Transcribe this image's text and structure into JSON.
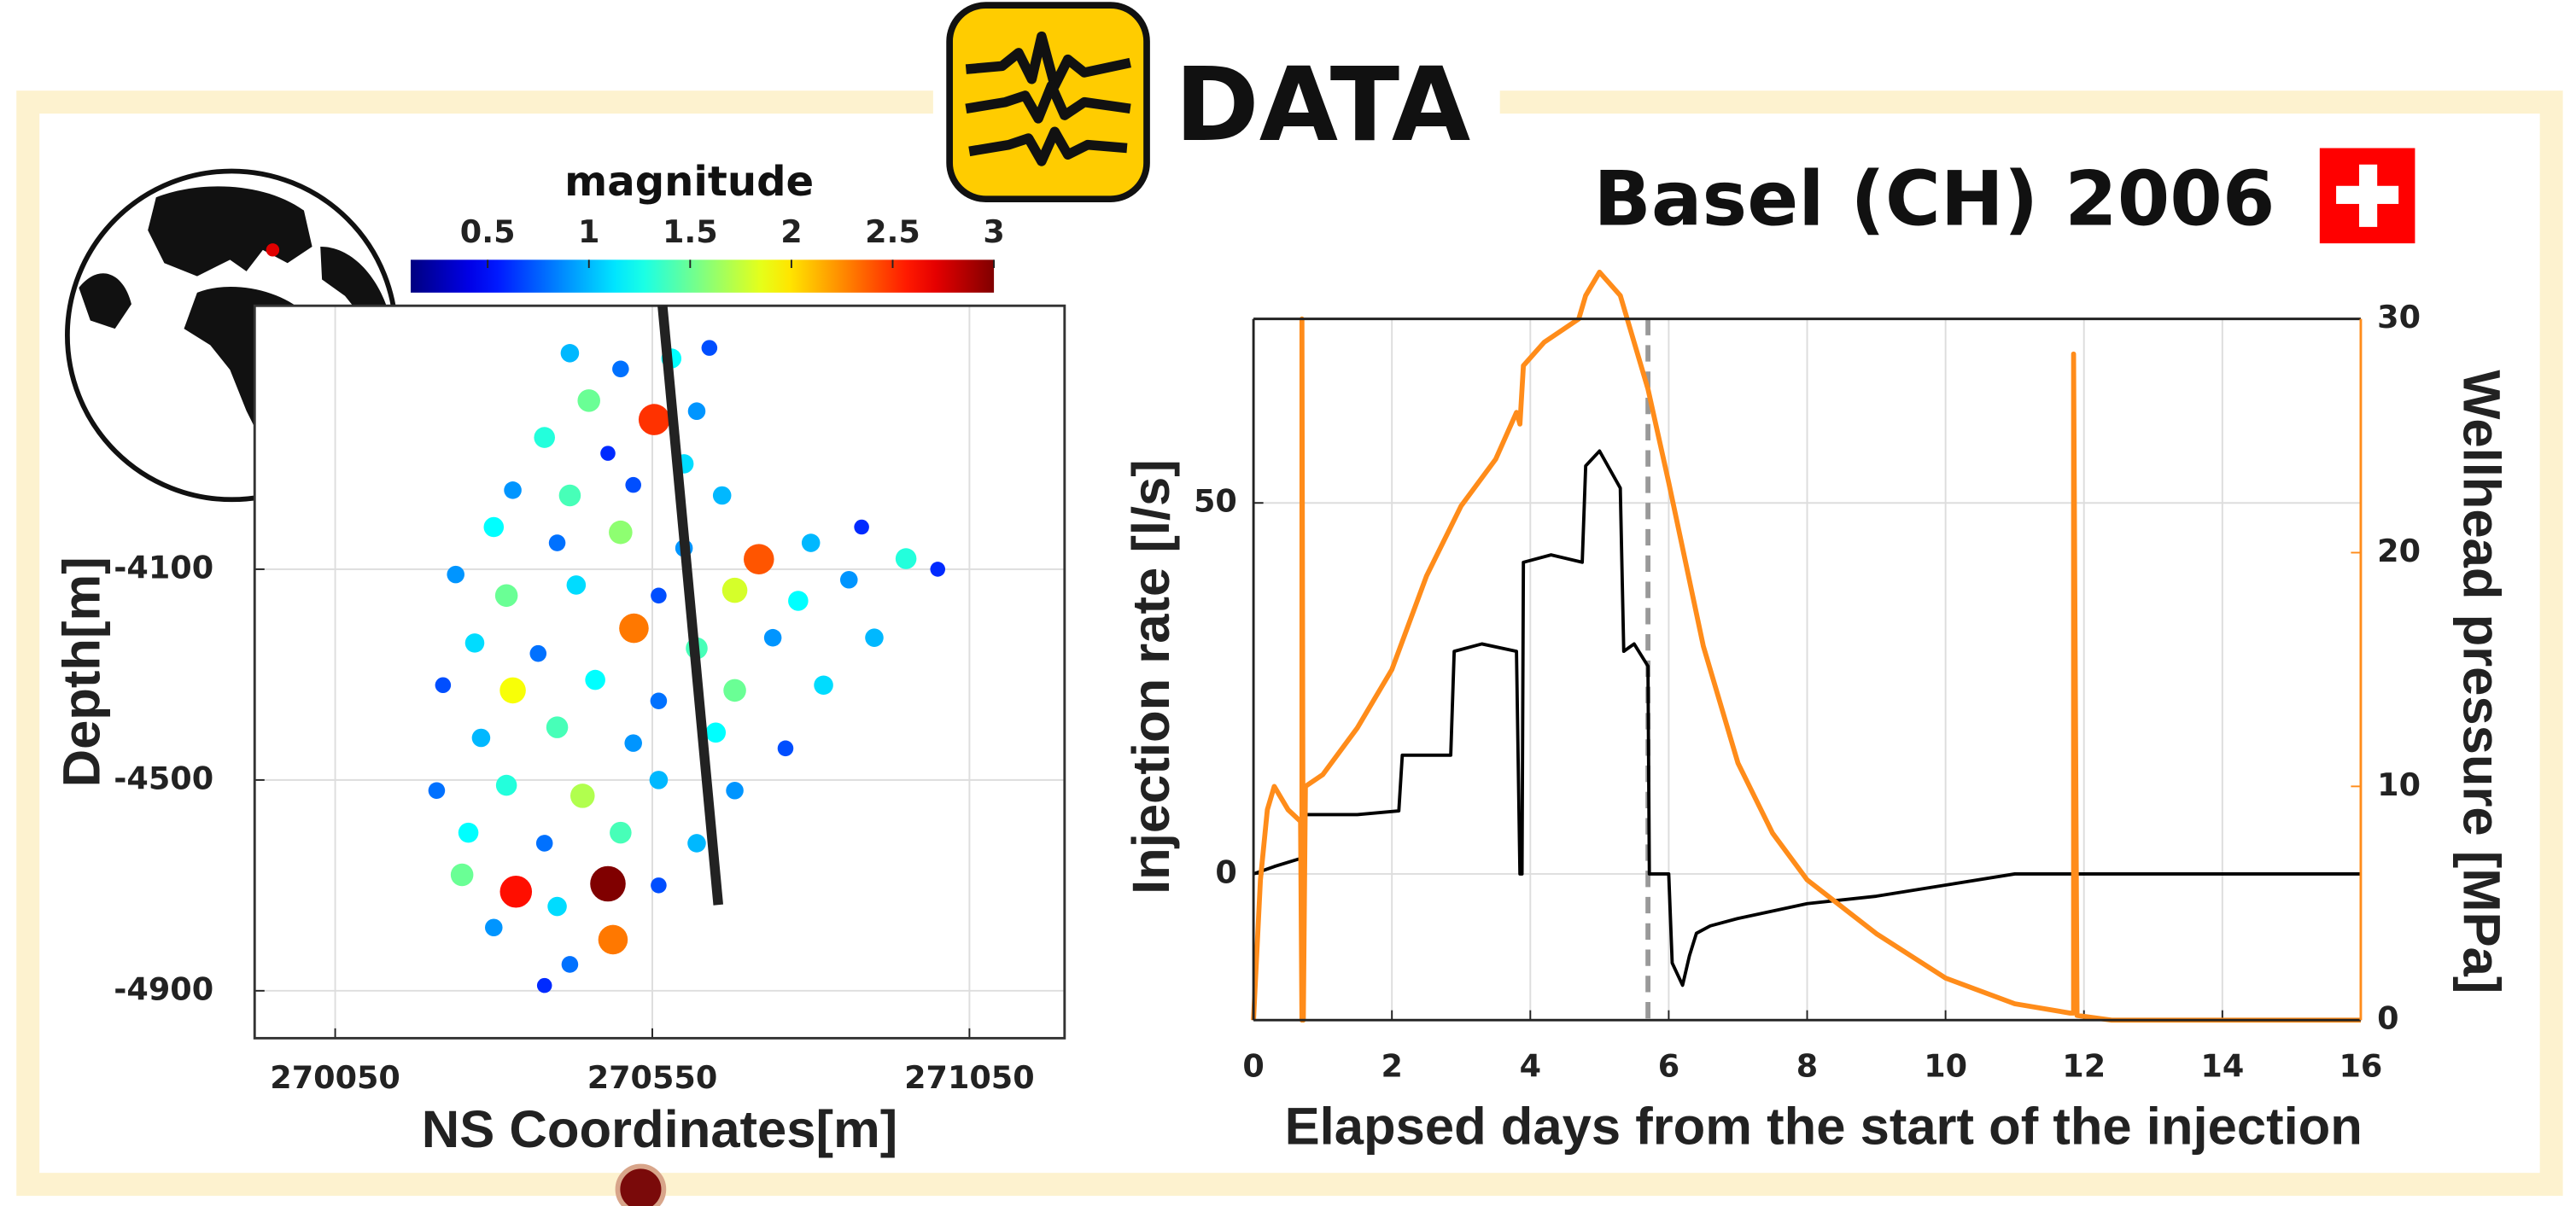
{
  "header": {
    "logo_text": "DATA",
    "title": "Basel (CH) 2006"
  },
  "chart_data": [
    {
      "type": "scatter",
      "xlabel": "NS Coordinates[m]",
      "ylabel": "Depth[m]",
      "xlim": [
        269923,
        271200
      ],
      "ylim": [
        -4990,
        -3600
      ],
      "xticks": [
        270050,
        270550,
        271050
      ],
      "yticks": [
        -4100,
        -4500,
        -4900
      ],
      "grid": true,
      "colorbar": {
        "label": "magnitude",
        "lim": [
          0.12,
          3
        ],
        "ticks": [
          0.5,
          1,
          1.5,
          2,
          2.5,
          3
        ],
        "colormap": "jet"
      },
      "points": {
        "x": [
          270420,
          270500,
          270580,
          270640,
          270450,
          270553,
          270620,
          270380,
          270480,
          270600,
          270330,
          270420,
          270520,
          270660,
          270300,
          270400,
          270500,
          270600,
          270718,
          270800,
          270880,
          270950,
          270240,
          270320,
          270430,
          270560,
          270680,
          270780,
          270860,
          271000,
          270521,
          270270,
          270370,
          270620,
          270740,
          270900,
          270220,
          270330,
          270460,
          270560,
          270680,
          270820,
          270280,
          270400,
          270520,
          270650,
          270760,
          270210,
          270320,
          270440,
          270560,
          270680,
          270260,
          270380,
          270500,
          270620,
          270335,
          270480,
          270250,
          270400,
          270560,
          270300,
          270488,
          270420,
          270380
        ],
        "y": [
          -3690,
          -3720,
          -3700,
          -3680,
          -3780,
          -3816,
          -3800,
          -3850,
          -3880,
          -3900,
          -3950,
          -3960,
          -3940,
          -3960,
          -4020,
          -4050,
          -4030,
          -4060,
          -4081,
          -4050,
          -4020,
          -4080,
          -4110,
          -4150,
          -4130,
          -4150,
          -4140,
          -4160,
          -4120,
          -4100,
          -4212,
          -4240,
          -4260,
          -4250,
          -4230,
          -4230,
          -4320,
          -4330,
          -4310,
          -4350,
          -4330,
          -4320,
          -4420,
          -4400,
          -4430,
          -4410,
          -4440,
          -4520,
          -4510,
          -4530,
          -4500,
          -4520,
          -4600,
          -4620,
          -4600,
          -4620,
          -4712,
          -4697,
          -4680,
          -4740,
          -4700,
          -4780,
          -4803,
          -4850,
          -4890
        ],
        "magnitude": [
          1.0,
          0.8,
          1.2,
          0.7,
          1.5,
          2.5,
          0.9,
          1.3,
          0.6,
          1.1,
          0.9,
          1.4,
          0.7,
          1.0,
          1.2,
          0.8,
          1.6,
          0.9,
          2.4,
          1.0,
          0.6,
          1.3,
          0.9,
          1.5,
          1.1,
          0.7,
          1.8,
          1.2,
          0.9,
          0.6,
          2.3,
          1.1,
          0.8,
          1.4,
          0.9,
          1.0,
          0.7,
          1.9,
          1.2,
          0.8,
          1.5,
          1.1,
          1.0,
          1.4,
          0.9,
          1.2,
          0.7,
          0.8,
          1.3,
          1.7,
          1.0,
          0.9,
          1.2,
          0.8,
          1.4,
          1.0,
          2.6,
          3.0,
          1.5,
          1.1,
          0.7,
          0.9,
          2.3,
          0.8,
          0.6
        ]
      },
      "well": {
        "x": [
          270566,
          270654
        ],
        "y": [
          -3600,
          -4737
        ],
        "color": "#222222"
      }
    },
    {
      "type": "line",
      "xlabel": "Elapsed days from the start of the injection",
      "ylabel": "Injection rate [l/s]",
      "y2label": "Wellhead pressure [MPa]",
      "xlim": [
        0,
        16
      ],
      "ylim": [
        -19.7,
        74.8
      ],
      "y2lim": [
        0,
        30
      ],
      "xticks": [
        0,
        2,
        4,
        6,
        8,
        10,
        12,
        14,
        16
      ],
      "yticks": [
        0,
        50
      ],
      "y2ticks": [
        0,
        10,
        20,
        30
      ],
      "grid": true,
      "series": [
        {
          "color": "#000000",
          "x": [
            0,
            0.3,
            0.65,
            0.7,
            0.72,
            1.5,
            2.1,
            2.15,
            2.85,
            2.9,
            3.3,
            3.8,
            3.85,
            3.88,
            3.9,
            4.3,
            4.75,
            4.8,
            5.0,
            5.3,
            5.35,
            5.5,
            5.7,
            5.72,
            5.75,
            6.0,
            6.05,
            6.2,
            6.3,
            6.4,
            6.6,
            7,
            8,
            9,
            10,
            11,
            11.5,
            12,
            16
          ],
          "values": [
            0,
            1,
            2,
            2,
            8,
            8,
            8.5,
            16,
            16,
            30,
            31,
            30,
            0,
            0,
            42,
            43,
            42,
            55,
            57,
            52,
            30,
            31,
            28,
            0,
            0,
            0,
            -12,
            -15,
            -11,
            -8,
            -7,
            -6,
            -4,
            -3,
            -1.5,
            0,
            0,
            0,
            0
          ]
        },
        {
          "color": "#ff8c1a",
          "axis": "y2",
          "x": [
            0,
            0.1,
            0.2,
            0.3,
            0.5,
            0.68,
            0.7,
            0.7,
            0.72,
            0.75,
            1,
            1.5,
            2,
            2.5,
            3,
            3.5,
            3.8,
            3.85,
            3.9,
            4.2,
            4.7,
            4.8,
            5.0,
            5.3,
            5.5,
            5.7,
            6,
            6.5,
            7,
            7.5,
            8,
            9,
            10,
            11,
            11.8,
            11.85,
            11.85,
            11.9,
            12.4,
            16
          ],
          "values": [
            0,
            6,
            9,
            10,
            9,
            8.5,
            0,
            30,
            0,
            10,
            10.5,
            12.5,
            15,
            19,
            22,
            24,
            26,
            25.5,
            28,
            29,
            30,
            31,
            32,
            31,
            29,
            27,
            23,
            16,
            11,
            8,
            6,
            3.7,
            1.8,
            0.7,
            0.3,
            0.3,
            28.5,
            0.2,
            0,
            0
          ]
        }
      ],
      "vline": {
        "x": 5.7,
        "color": "#999999"
      }
    }
  ]
}
